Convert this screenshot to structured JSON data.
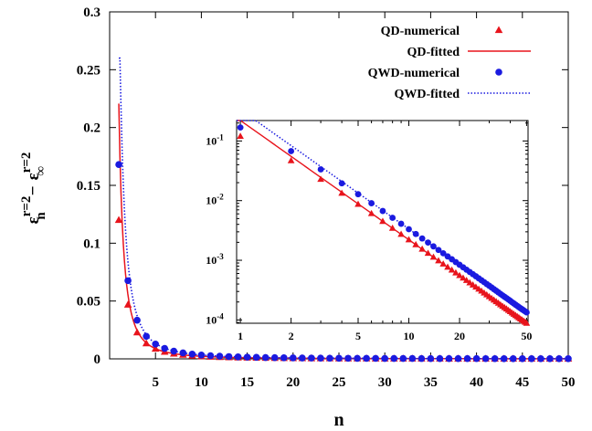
{
  "chart_data": {
    "type": "scatter",
    "main": {
      "xlabel": "n",
      "ylabel_parts": {
        "base": "ε",
        "sup": "r=2",
        "sub_n": "n",
        "sub_inf": "∞",
        "minus": "−"
      },
      "xlim": [
        0,
        50
      ],
      "ylim": [
        0,
        0.3
      ],
      "xticks": [
        5,
        10,
        15,
        20,
        25,
        30,
        35,
        40,
        45,
        50
      ],
      "yticks": [
        0,
        0.05,
        0.1,
        0.15,
        0.2,
        0.25,
        0.3
      ],
      "ytick_labels": [
        "0",
        "0.05",
        "0.1",
        "0.15",
        "0.2",
        "0.25",
        "0.3"
      ]
    },
    "inset": {
      "xscale": "log",
      "yscale": "log",
      "xlim": [
        0.95,
        51
      ],
      "ylim": [
        8.8e-05,
        0.22
      ],
      "xticks": [
        1,
        2,
        5,
        10,
        20,
        50
      ],
      "yticks": [
        0.0001,
        0.001,
        0.01,
        0.1
      ],
      "ytick_labels": [
        {
          "base": "10",
          "exp": "-4"
        },
        {
          "base": "10",
          "exp": "-3"
        },
        {
          "base": "10",
          "exp": "-2"
        },
        {
          "base": "10",
          "exp": "-1"
        }
      ]
    },
    "legend": {
      "position": "top-right",
      "entries": [
        {
          "label": "QD-numerical",
          "marker": "triangle",
          "color": "#e8141c"
        },
        {
          "label": "QD-fitted",
          "line": "solid",
          "color": "#e8141c"
        },
        {
          "label": "QWD-numerical",
          "marker": "circle",
          "color": "#1a1ae0"
        },
        {
          "label": "QWD-fitted",
          "line": "dotted",
          "color": "#1a1ae0"
        }
      ]
    },
    "series": [
      {
        "name": "QD-numerical",
        "color": "#e8141c",
        "x": [
          1,
          2,
          3,
          4,
          5,
          6,
          7,
          8,
          9,
          10,
          11,
          12,
          13,
          14,
          15,
          16,
          17,
          18,
          19,
          20,
          21,
          22,
          23,
          24,
          25,
          26,
          27,
          28,
          29,
          30,
          31,
          32,
          33,
          34,
          35,
          36,
          37,
          38,
          39,
          40,
          41,
          42,
          43,
          44,
          45,
          46,
          47,
          48,
          49,
          50
        ],
        "y": [
          0.12,
          0.0468,
          0.0228,
          0.0133,
          0.0087,
          0.00608,
          0.00449,
          0.00345,
          0.00273,
          0.00221,
          0.00183,
          0.00154,
          0.00131,
          0.00113,
          0.000983,
          0.000866,
          0.000768,
          0.000686,
          0.000616,
          0.000556,
          0.000504,
          0.00046,
          0.00042,
          0.000386,
          0.000356,
          0.000329,
          0.000305,
          0.000283,
          0.000264,
          0.000246,
          0.00023,
          0.000216,
          0.000203,
          0.000191,
          0.00018,
          0.00017,
          0.000161,
          0.000153,
          0.000145,
          0.000138,
          0.000131,
          0.000125,
          0.000119,
          0.000114,
          0.000109,
          0.000104,
          0.0001,
          9.58e-05,
          9.19e-05,
          8.83e-05
        ]
      },
      {
        "name": "QWD-numerical",
        "color": "#1a1ae0",
        "x": [
          1,
          2,
          3,
          4,
          5,
          6,
          7,
          8,
          9,
          10,
          11,
          12,
          13,
          14,
          15,
          16,
          17,
          18,
          19,
          20,
          21,
          22,
          23,
          24,
          25,
          26,
          27,
          28,
          29,
          30,
          31,
          32,
          33,
          34,
          35,
          36,
          37,
          38,
          39,
          40,
          41,
          42,
          43,
          44,
          45,
          46,
          47,
          48,
          49,
          50
        ],
        "y": [
          0.168,
          0.0676,
          0.0334,
          0.0195,
          0.0128,
          0.00905,
          0.0067,
          0.00516,
          0.00409,
          0.00332,
          0.00276,
          0.00232,
          0.00198,
          0.00171,
          0.00149,
          0.00131,
          0.00116,
          0.00104,
          0.000932,
          0.000841,
          0.000763,
          0.000695,
          0.000636,
          0.000585,
          0.000539,
          0.000498,
          0.000462,
          0.00043,
          0.0004,
          0.000374,
          0.00035,
          0.000328,
          0.000308,
          0.00029,
          0.000273,
          0.000258,
          0.000244,
          0.000232,
          0.00022,
          0.000209,
          0.000198,
          0.000189,
          0.00018,
          0.000172,
          0.000164,
          0.000157,
          0.000151,
          0.000145,
          0.000139,
          0.000134
        ]
      },
      {
        "name": "QD-fitted",
        "color": "#e8141c",
        "model": "power",
        "a": 0.2207,
        "b": 2.0
      },
      {
        "name": "QWD-fitted",
        "color": "#1a1ae0",
        "model": "power",
        "a": 0.3346,
        "b": 2.0
      }
    ]
  }
}
